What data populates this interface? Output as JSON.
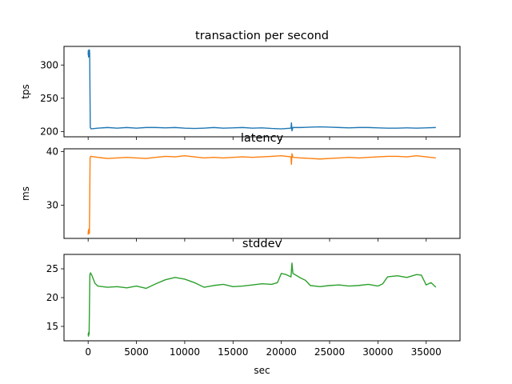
{
  "chart_data": [
    {
      "type": "line",
      "title": "transaction per second",
      "ylabel": "tps",
      "xlabel": "",
      "xlim": [
        -2500,
        38500
      ],
      "ylim": [
        192,
        328
      ],
      "xticks": [
        0,
        5000,
        10000,
        15000,
        20000,
        25000,
        30000,
        35000
      ],
      "xtick_labels_visible": false,
      "yticks": [
        200,
        250,
        300
      ],
      "grid": false,
      "series": [
        {
          "color": "#1f77b4",
          "points": [
            [
              0,
              315
            ],
            [
              20,
              322
            ],
            [
              40,
              312
            ],
            [
              60,
              318
            ],
            [
              80,
              316
            ],
            [
              100,
              320
            ],
            [
              130,
              323
            ],
            [
              160,
              317
            ],
            [
              190,
              260
            ],
            [
              220,
              206
            ],
            [
              300,
              204
            ],
            [
              1000,
              205
            ],
            [
              2000,
              206
            ],
            [
              3000,
              205
            ],
            [
              4000,
              206
            ],
            [
              5000,
              205
            ],
            [
              6000,
              206
            ],
            [
              7000,
              206
            ],
            [
              8000,
              205.5
            ],
            [
              9000,
              206
            ],
            [
              10000,
              205
            ],
            [
              11000,
              204.5
            ],
            [
              12000,
              205
            ],
            [
              13000,
              206
            ],
            [
              14000,
              205
            ],
            [
              15000,
              205.5
            ],
            [
              16000,
              206
            ],
            [
              17000,
              205
            ],
            [
              18000,
              205.5
            ],
            [
              19000,
              204.5
            ],
            [
              20000,
              204
            ],
            [
              21000,
              205
            ],
            [
              21050,
              213
            ],
            [
              21100,
              201
            ],
            [
              21200,
              206
            ],
            [
              22000,
              206
            ],
            [
              23000,
              206.5
            ],
            [
              24000,
              207
            ],
            [
              25000,
              206.5
            ],
            [
              26000,
              206
            ],
            [
              27000,
              205.5
            ],
            [
              28000,
              206
            ],
            [
              29000,
              206
            ],
            [
              30000,
              205.5
            ],
            [
              31000,
              205
            ],
            [
              32000,
              205
            ],
            [
              33000,
              205.5
            ],
            [
              34000,
              205
            ],
            [
              35000,
              205.5
            ],
            [
              36000,
              206
            ]
          ]
        }
      ]
    },
    {
      "type": "line",
      "title": "latency",
      "ylabel": "ms",
      "xlabel": "",
      "xlim": [
        -2500,
        38500
      ],
      "ylim": [
        23.8,
        40.5
      ],
      "xticks": [
        0,
        5000,
        10000,
        15000,
        20000,
        25000,
        30000,
        35000
      ],
      "xtick_labels_visible": false,
      "yticks": [
        30,
        40
      ],
      "grid": false,
      "series": [
        {
          "color": "#ff7f0e",
          "points": [
            [
              0,
              24.5
            ],
            [
              20,
              25.2
            ],
            [
              40,
              24.8
            ],
            [
              60,
              25.5
            ],
            [
              80,
              24.9
            ],
            [
              100,
              25.1
            ],
            [
              130,
              24.7
            ],
            [
              160,
              30
            ],
            [
              200,
              38.8
            ],
            [
              260,
              39.1
            ],
            [
              1000,
              38.9
            ],
            [
              2000,
              38.7
            ],
            [
              3000,
              38.8
            ],
            [
              4000,
              38.9
            ],
            [
              5000,
              38.8
            ],
            [
              6000,
              38.7
            ],
            [
              7000,
              38.9
            ],
            [
              8000,
              39.1
            ],
            [
              9000,
              39.0
            ],
            [
              10000,
              39.2
            ],
            [
              11000,
              39.0
            ],
            [
              12000,
              38.8
            ],
            [
              13000,
              38.9
            ],
            [
              14000,
              38.8
            ],
            [
              15000,
              38.9
            ],
            [
              16000,
              39.0
            ],
            [
              17000,
              38.9
            ],
            [
              18000,
              39.0
            ],
            [
              19000,
              39.1
            ],
            [
              20000,
              39.2
            ],
            [
              21000,
              39.0
            ],
            [
              21050,
              37.6
            ],
            [
              21100,
              39.6
            ],
            [
              21200,
              38.9
            ],
            [
              22000,
              38.8
            ],
            [
              23000,
              38.7
            ],
            [
              24000,
              38.6
            ],
            [
              25000,
              38.7
            ],
            [
              26000,
              38.8
            ],
            [
              27000,
              38.9
            ],
            [
              28000,
              38.8
            ],
            [
              29000,
              38.9
            ],
            [
              30000,
              39.0
            ],
            [
              31000,
              39.1
            ],
            [
              32000,
              39.1
            ],
            [
              33000,
              39.0
            ],
            [
              34000,
              39.2
            ],
            [
              35000,
              39.0
            ],
            [
              36000,
              38.8
            ]
          ]
        }
      ]
    },
    {
      "type": "line",
      "title": "stddev",
      "ylabel": "",
      "xlabel": "sec",
      "xlim": [
        -2500,
        38500
      ],
      "ylim": [
        12.5,
        27.5
      ],
      "xticks": [
        0,
        5000,
        10000,
        15000,
        20000,
        25000,
        30000,
        35000
      ],
      "xtick_labels_visible": true,
      "yticks": [
        15,
        20,
        25
      ],
      "grid": false,
      "series": [
        {
          "color": "#2ca02c",
          "points": [
            [
              0,
              13.8
            ],
            [
              30,
              13.3
            ],
            [
              60,
              14.0
            ],
            [
              100,
              13.6
            ],
            [
              140,
              19
            ],
            [
              180,
              24.0
            ],
            [
              250,
              24.3
            ],
            [
              400,
              23.8
            ],
            [
              700,
              22.5
            ],
            [
              1000,
              22.0
            ],
            [
              2000,
              21.8
            ],
            [
              3000,
              21.9
            ],
            [
              4000,
              21.7
            ],
            [
              5000,
              22.0
            ],
            [
              6000,
              21.6
            ],
            [
              7000,
              22.4
            ],
            [
              8000,
              23.1
            ],
            [
              9000,
              23.5
            ],
            [
              10000,
              23.2
            ],
            [
              11000,
              22.6
            ],
            [
              12000,
              21.8
            ],
            [
              13000,
              22.1
            ],
            [
              14000,
              22.3
            ],
            [
              15000,
              21.9
            ],
            [
              16000,
              22.0
            ],
            [
              17000,
              22.2
            ],
            [
              18000,
              22.4
            ],
            [
              19000,
              22.3
            ],
            [
              19600,
              22.6
            ],
            [
              20000,
              24.2
            ],
            [
              20500,
              24.0
            ],
            [
              21000,
              23.6
            ],
            [
              21100,
              26.0
            ],
            [
              21200,
              24.2
            ],
            [
              22000,
              23.4
            ],
            [
              22500,
              23.0
            ],
            [
              23000,
              22.1
            ],
            [
              24000,
              21.9
            ],
            [
              25000,
              22.1
            ],
            [
              26000,
              22.2
            ],
            [
              27000,
              22.0
            ],
            [
              28000,
              22.1
            ],
            [
              29000,
              22.3
            ],
            [
              30000,
              22.0
            ],
            [
              30500,
              22.4
            ],
            [
              31000,
              23.6
            ],
            [
              32000,
              23.8
            ],
            [
              33000,
              23.5
            ],
            [
              34000,
              24.0
            ],
            [
              34500,
              23.9
            ],
            [
              35000,
              22.2
            ],
            [
              35500,
              22.6
            ],
            [
              36000,
              21.8
            ]
          ]
        }
      ]
    }
  ]
}
